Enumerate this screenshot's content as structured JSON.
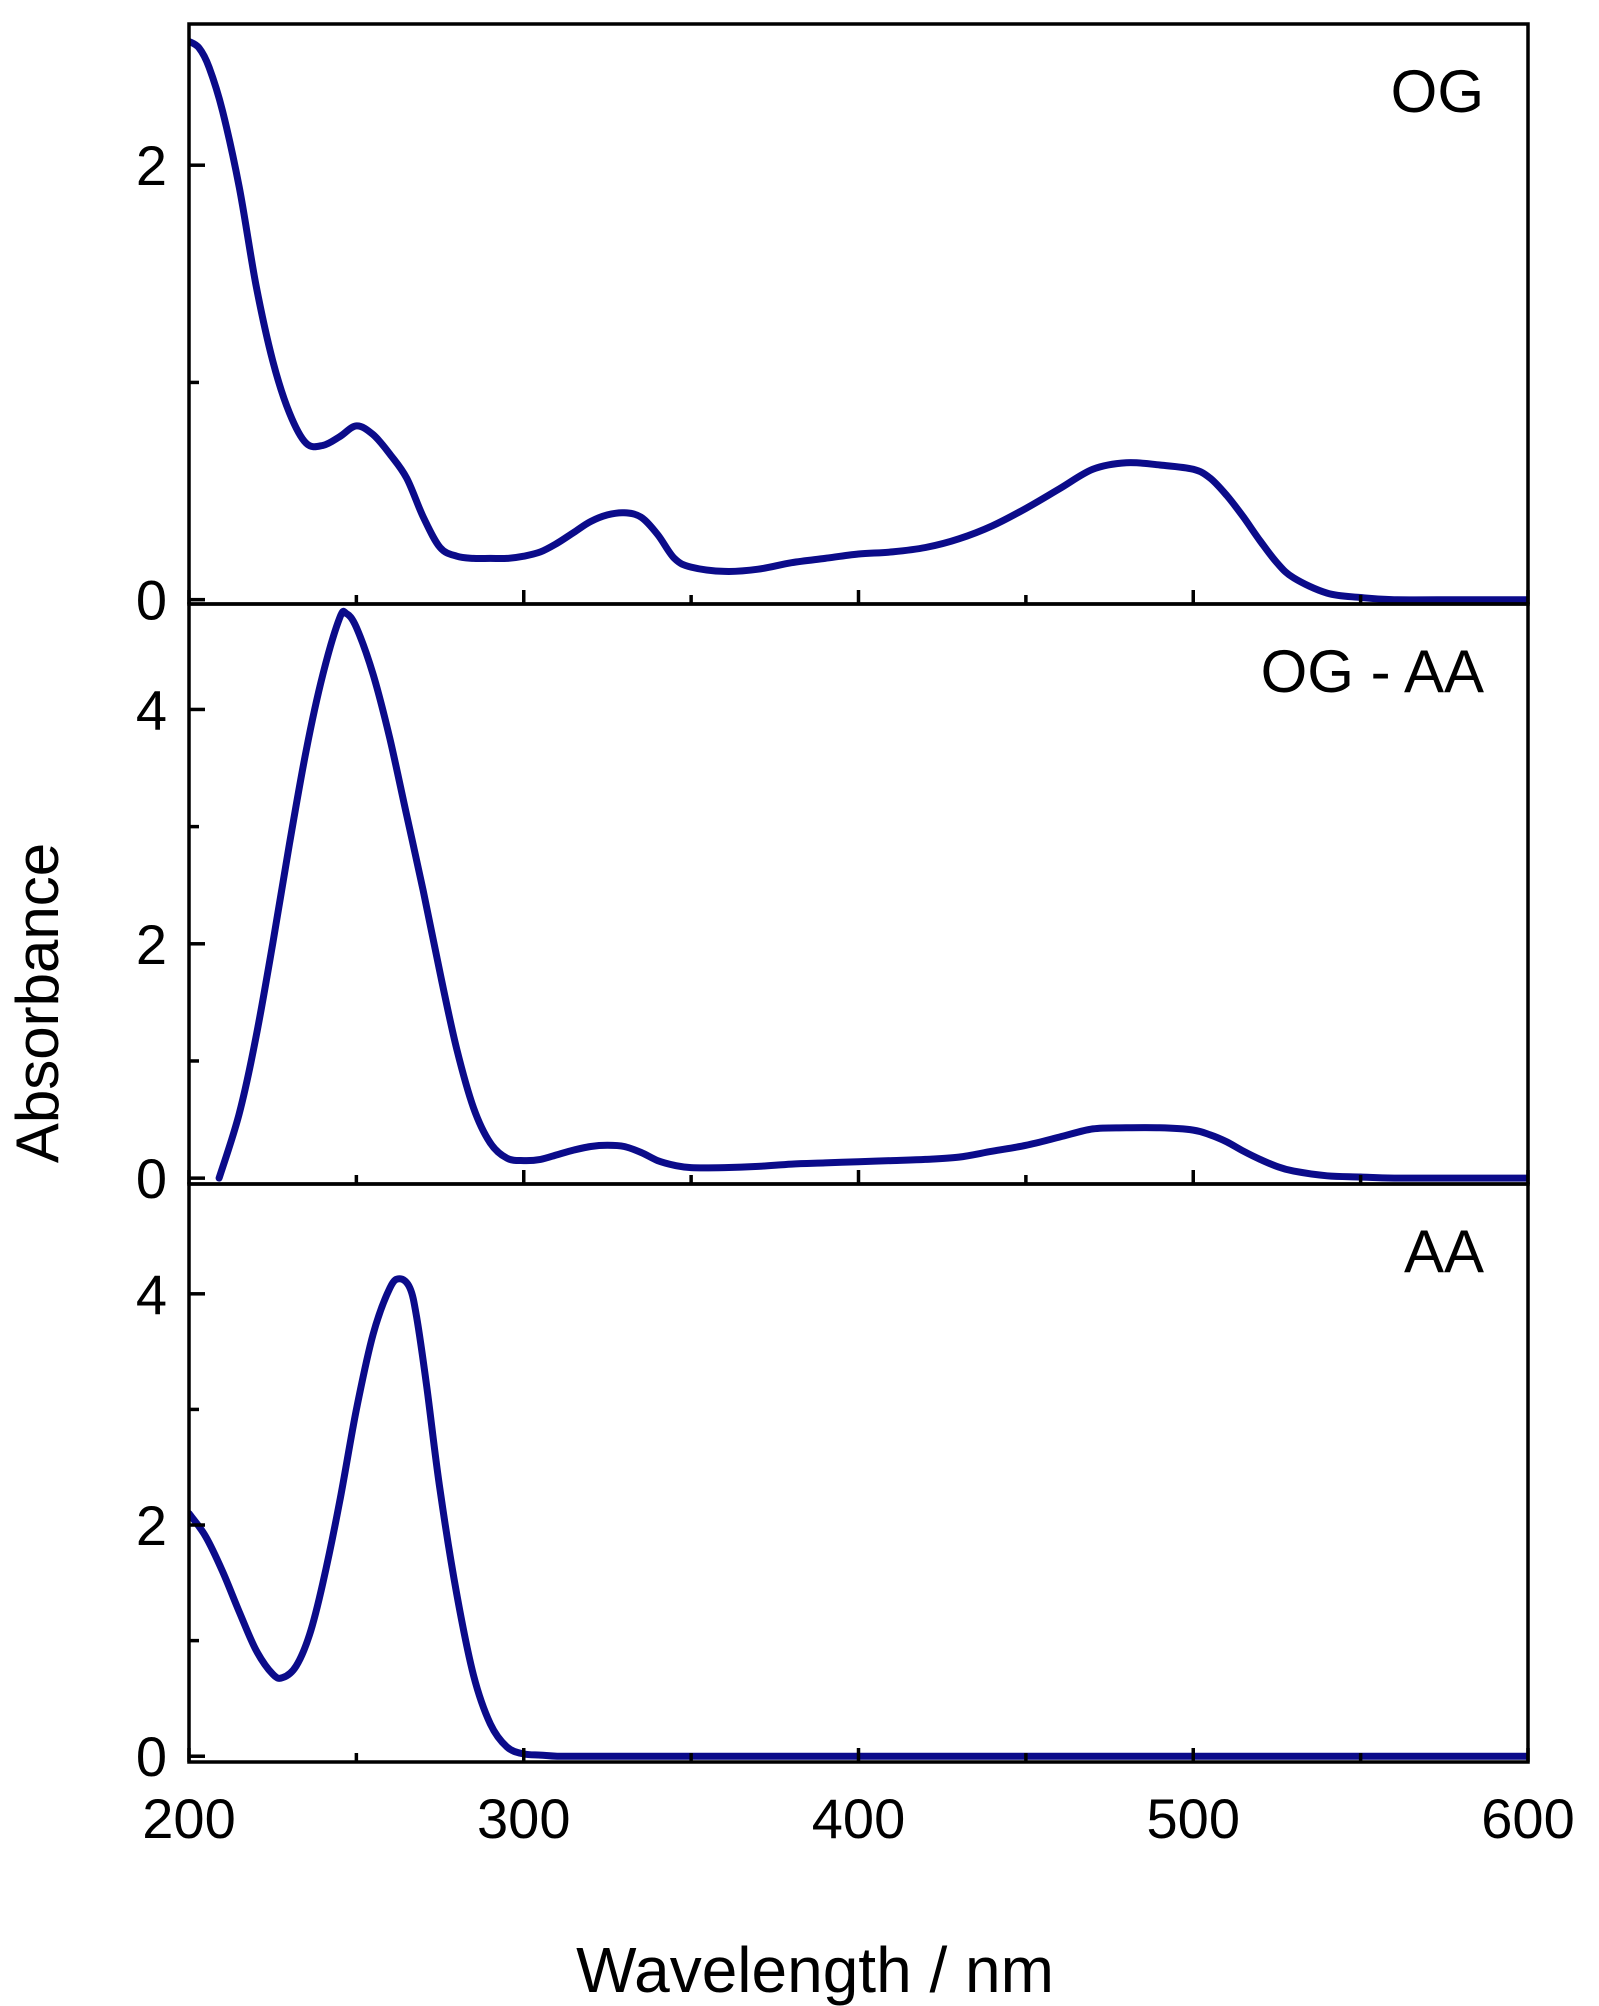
{
  "chart_data": {
    "type": "line",
    "layout": "stacked-panels-shared-x",
    "xlabel": "Wavelength / nm",
    "ylabel": "Absorbance",
    "xlim": [
      200,
      600
    ],
    "x_ticks": [
      200,
      300,
      400,
      500,
      600
    ],
    "grid": false,
    "line_color": "#0b0b8a",
    "panels": [
      {
        "label": "OG",
        "ylim": [
          -0.02,
          2.65
        ],
        "y_ticks": [
          0,
          2
        ],
        "y_minor_ticks": [
          1
        ],
        "series": [
          {
            "x": [
              200,
              203,
              206,
              210,
              215,
              220,
              225,
              230,
              235,
              240,
              245,
              250,
              255,
              260,
              265,
              270,
              275,
              280,
              285,
              290,
              295,
              300,
              305,
              310,
              315,
              320,
              325,
              330,
              335,
              340,
              345,
              350,
              360,
              370,
              380,
              390,
              400,
              410,
              420,
              430,
              440,
              450,
              460,
              470,
              480,
              490,
              500,
              505,
              510,
              515,
              520,
              525,
              530,
              540,
              550,
              560,
              580,
              600
            ],
            "y": [
              2.57,
              2.54,
              2.45,
              2.25,
              1.9,
              1.45,
              1.1,
              0.86,
              0.72,
              0.71,
              0.75,
              0.8,
              0.76,
              0.67,
              0.56,
              0.38,
              0.24,
              0.2,
              0.19,
              0.19,
              0.19,
              0.2,
              0.22,
              0.26,
              0.31,
              0.36,
              0.39,
              0.4,
              0.38,
              0.3,
              0.19,
              0.15,
              0.13,
              0.14,
              0.17,
              0.19,
              0.21,
              0.22,
              0.24,
              0.28,
              0.34,
              0.42,
              0.51,
              0.6,
              0.63,
              0.62,
              0.6,
              0.56,
              0.48,
              0.38,
              0.27,
              0.17,
              0.1,
              0.03,
              0.01,
              0.0,
              0.0,
              0.0
            ]
          }
        ]
      },
      {
        "label": "OG - AA",
        "ylim": [
          -0.05,
          4.9
        ],
        "y_ticks": [
          0,
          2,
          4
        ],
        "y_minor_ticks": [
          1,
          3
        ],
        "series": [
          {
            "x": [
              209,
              215,
              220,
              225,
              230,
              235,
              240,
              245,
              247,
              250,
              255,
              260,
              265,
              270,
              275,
              280,
              285,
              290,
              295,
              300,
              305,
              310,
              315,
              320,
              325,
              330,
              335,
              340,
              345,
              350,
              360,
              370,
              380,
              390,
              400,
              410,
              420,
              430,
              440,
              450,
              460,
              470,
              480,
              490,
              500,
              505,
              510,
              515,
              520,
              525,
              530,
              540,
              550,
              560,
              580,
              600
            ],
            "y": [
              0.0,
              0.55,
              1.2,
              2.0,
              2.85,
              3.65,
              4.3,
              4.78,
              4.82,
              4.7,
              4.3,
              3.75,
              3.1,
              2.45,
              1.75,
              1.1,
              0.6,
              0.3,
              0.17,
              0.15,
              0.16,
              0.2,
              0.24,
              0.27,
              0.28,
              0.27,
              0.22,
              0.15,
              0.11,
              0.09,
              0.09,
              0.1,
              0.12,
              0.13,
              0.14,
              0.15,
              0.16,
              0.18,
              0.23,
              0.28,
              0.35,
              0.42,
              0.43,
              0.43,
              0.41,
              0.37,
              0.31,
              0.23,
              0.16,
              0.1,
              0.06,
              0.02,
              0.01,
              0.0,
              0.0,
              0.0
            ]
          }
        ]
      },
      {
        "label": "AA",
        "ylim": [
          -0.05,
          4.95
        ],
        "y_ticks": [
          0,
          2,
          4
        ],
        "y_minor_ticks": [
          1,
          3
        ],
        "series": [
          {
            "x": [
              200,
              205,
              210,
              215,
              220,
              225,
              228,
              232,
              236,
              240,
              245,
              250,
              255,
              260,
              263,
              266,
              268,
              271,
              275,
              280,
              285,
              290,
              295,
              300,
              305,
              310,
              320,
              340,
              400,
              500,
              600
            ],
            "y": [
              2.1,
              1.9,
              1.6,
              1.25,
              0.92,
              0.71,
              0.68,
              0.78,
              1.05,
              1.5,
              2.2,
              3.0,
              3.65,
              4.05,
              4.13,
              4.05,
              3.8,
              3.2,
              2.3,
              1.4,
              0.7,
              0.28,
              0.08,
              0.02,
              0.01,
              0.0,
              0.0,
              0.0,
              0.0,
              0.0,
              0.0
            ]
          }
        ]
      }
    ]
  }
}
